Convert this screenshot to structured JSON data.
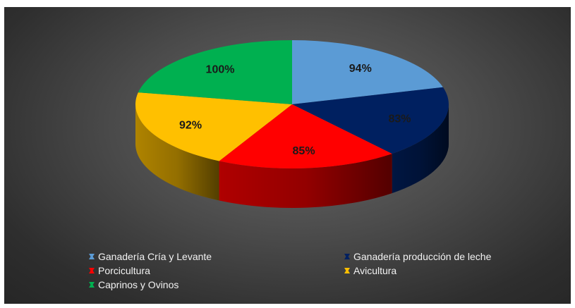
{
  "chart_data": {
    "type": "pie",
    "categories": [
      "Ganadería Cría y Levante",
      "Ganadería producción de leche",
      "Porcicultura",
      "Avicultura",
      "Caprinos y Ovinos"
    ],
    "values": [
      94,
      83,
      85,
      92,
      100
    ],
    "data_labels": [
      "94%",
      "83%",
      "85%",
      "92%",
      "100%"
    ],
    "colors": [
      "#5b9bd5",
      "#002060",
      "#ff0000",
      "#ffc000",
      "#00b050"
    ],
    "style": "3d",
    "legend_position": "bottom",
    "title": ""
  }
}
